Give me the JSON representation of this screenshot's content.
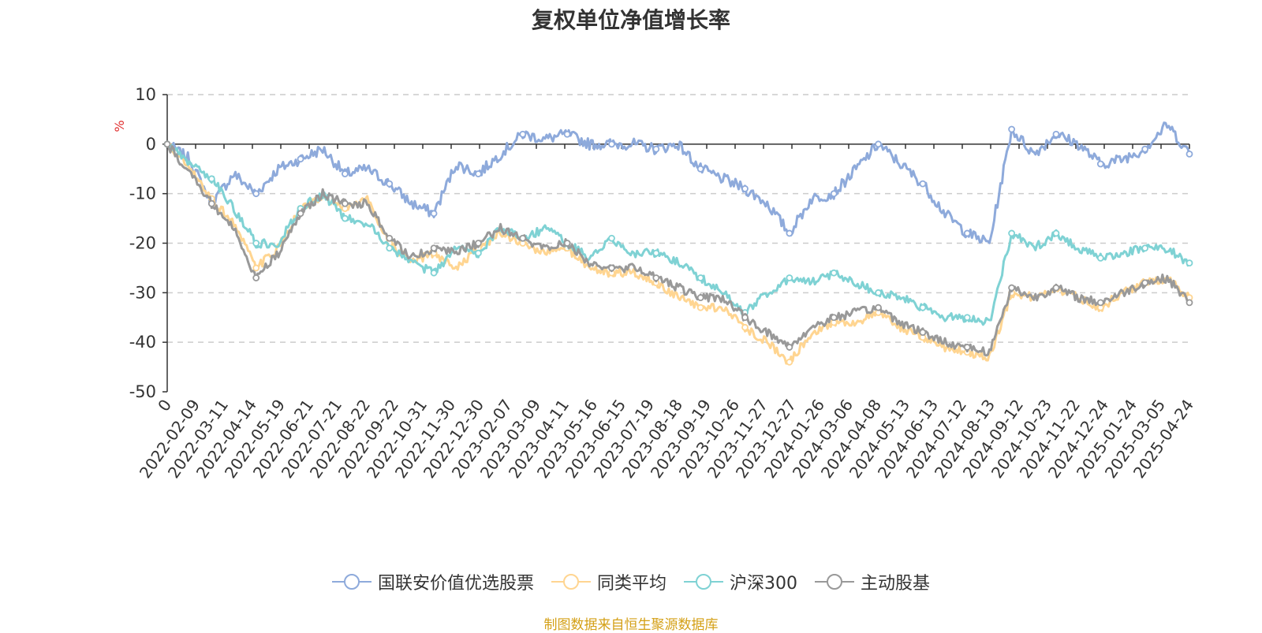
{
  "chart_data": {
    "type": "line",
    "title": "复权单位净值增长率",
    "ylabel": "%",
    "ylim": [
      -50,
      10
    ],
    "yticks": [
      10,
      0,
      -10,
      -20,
      -30,
      -40,
      -50
    ],
    "grid": true,
    "legend_position": "bottom",
    "x_ticks": [
      "0",
      "2022-02-09",
      "2022-03-11",
      "2022-04-14",
      "2022-05-19",
      "2022-06-21",
      "2022-07-21",
      "2022-08-22",
      "2022-09-22",
      "2022-10-31",
      "2022-11-30",
      "2022-12-30",
      "2023-02-07",
      "2023-03-09",
      "2023-04-11",
      "2023-05-16",
      "2023-06-15",
      "2023-07-19",
      "2023-08-18",
      "2023-09-19",
      "2023-10-26",
      "2023-11-27",
      "2023-12-27",
      "2024-01-26",
      "2024-03-06",
      "2024-04-08",
      "2024-05-13",
      "2024-06-13",
      "2024-07-12",
      "2024-08-13",
      "2024-09-12",
      "2024-10-23",
      "2024-11-22",
      "2024-12-24",
      "2025-01-24",
      "2025-03-05",
      "2025-04-24"
    ],
    "series": [
      {
        "name": "国联安价值优选股票",
        "color": "#8eaadb",
        "values": [
          0,
          -3,
          -12,
          -6,
          -10,
          -5,
          -3,
          -1,
          -6,
          -5,
          -8,
          -12,
          -14,
          -4,
          -6,
          -2,
          2,
          1,
          2,
          0,
          0,
          0,
          -1,
          0,
          -5,
          -7,
          -9,
          -12,
          -18,
          -11,
          -10,
          -5,
          0,
          -4,
          -8,
          -14,
          -18,
          -20,
          3,
          -2,
          2,
          0,
          -4,
          -3,
          -1,
          4,
          -2
        ]
      },
      {
        "name": "同类平均",
        "color": "#ffd591",
        "values": [
          0,
          -5,
          -11,
          -16,
          -25,
          -21,
          -13,
          -11,
          -13,
          -11,
          -20,
          -24,
          -22,
          -25,
          -21,
          -18,
          -20,
          -22,
          -21,
          -25,
          -26,
          -26,
          -28,
          -31,
          -33,
          -33,
          -37,
          -40,
          -44,
          -38,
          -36,
          -36,
          -34,
          -37,
          -39,
          -41,
          -42,
          -43,
          -30,
          -31,
          -29,
          -31,
          -33,
          -30,
          -28,
          -27,
          -31
        ]
      },
      {
        "name": "沪深300",
        "color": "#7fd2d4",
        "values": [
          0,
          -4,
          -7,
          -13,
          -20,
          -20,
          -13,
          -10,
          -15,
          -16,
          -21,
          -24,
          -26,
          -21,
          -22,
          -17,
          -19,
          -17,
          -20,
          -23,
          -19,
          -22,
          -22,
          -24,
          -27,
          -30,
          -34,
          -30,
          -27,
          -28,
          -26,
          -28,
          -30,
          -31,
          -33,
          -35,
          -35,
          -36,
          -18,
          -21,
          -18,
          -21,
          -23,
          -22,
          -21,
          -21,
          -24
        ]
      },
      {
        "name": "主动股基",
        "color": "#999999",
        "values": [
          0,
          -6,
          -12,
          -17,
          -27,
          -22,
          -14,
          -10,
          -12,
          -12,
          -19,
          -23,
          -21,
          -22,
          -20,
          -17,
          -19,
          -21,
          -20,
          -24,
          -25,
          -25,
          -27,
          -29,
          -31,
          -31,
          -35,
          -38,
          -41,
          -37,
          -35,
          -34,
          -33,
          -36,
          -38,
          -40,
          -41,
          -42,
          -29,
          -31,
          -29,
          -31,
          -32,
          -30,
          -28,
          -27,
          -32
        ]
      }
    ]
  },
  "legend": [
    {
      "label": "国联安价值优选股票",
      "color": "#8eaadb"
    },
    {
      "label": "同类平均",
      "color": "#ffd591"
    },
    {
      "label": "沪深300",
      "color": "#7fd2d4"
    },
    {
      "label": "主动股基",
      "color": "#999999"
    }
  ],
  "source_note": {
    "text": "制图数据来自恒生聚源数据库",
    "color": "#d4a017"
  }
}
